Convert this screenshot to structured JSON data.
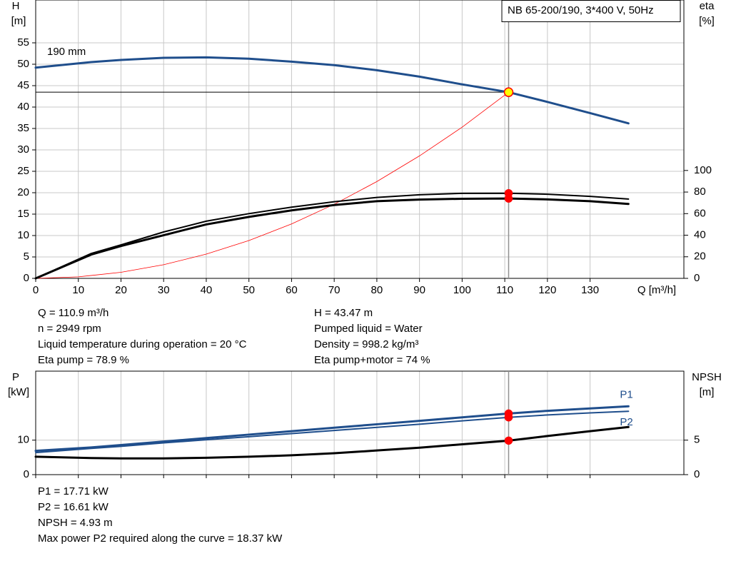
{
  "header": {
    "model": "NB 65-200/190, 3*400 V, 50Hz"
  },
  "chart_data": [
    {
      "type": "line",
      "y_label": "H",
      "y_unit": "[m]",
      "y2_label": "eta",
      "y2_unit": "[%]",
      "x_label": "Q [m³/h]",
      "xlim": [
        0,
        152
      ],
      "xticks": [
        0,
        10,
        20,
        30,
        40,
        50,
        60,
        70,
        80,
        90,
        100,
        110,
        120,
        130
      ],
      "show_xtick_labels": true,
      "ylim": [
        0,
        65
      ],
      "yticks": [
        0,
        5,
        10,
        15,
        20,
        25,
        30,
        35,
        40,
        45,
        50,
        55
      ],
      "y2lim": [
        0,
        258
      ],
      "y2ticks": [
        0,
        20,
        40,
        60,
        80,
        100
      ],
      "grid": true,
      "operating_x": 110.9,
      "series": [
        {
          "name": "190 mm",
          "color": "#1f4e8c",
          "width": 3,
          "marker": "#ffff00",
          "axis": "y",
          "x": [
            0,
            13,
            20,
            30,
            40,
            50,
            60,
            70,
            80,
            90,
            100,
            110.9,
            120,
            130,
            139
          ],
          "values": [
            49.2,
            50.5,
            51,
            51.5,
            51.6,
            51.3,
            50.6,
            49.8,
            48.6,
            47.1,
            45.3,
            43.47,
            41.2,
            38.6,
            36.2
          ]
        },
        {
          "color": "#ff0000",
          "width": 0.8,
          "axis": "y",
          "x": [
            0,
            10,
            20,
            30,
            40,
            50,
            60,
            70,
            80,
            90,
            100,
            110.9
          ],
          "values": [
            0,
            0.35,
            1.41,
            3.18,
            5.66,
            8.84,
            12.7,
            17.3,
            22.6,
            28.6,
            35.3,
            43.47
          ]
        },
        {
          "color": "#000000",
          "width": 2,
          "marker": "#ff0000",
          "axis": "y2",
          "x": [
            0,
            13,
            20,
            30,
            40,
            50,
            60,
            70,
            80,
            90,
            100,
            110.9,
            120,
            130,
            139
          ],
          "values": [
            0,
            23,
            31,
            43,
            53,
            60,
            66,
            71,
            75,
            77.5,
            78.8,
            78.9,
            78,
            76,
            73.5
          ]
        },
        {
          "color": "#000000",
          "width": 3,
          "marker": "#ff0000",
          "axis": "y2",
          "x": [
            0,
            13,
            20,
            30,
            40,
            50,
            60,
            70,
            80,
            90,
            100,
            110.9,
            120,
            130,
            139
          ],
          "values": [
            0,
            22,
            30,
            40,
            50,
            57,
            63,
            68,
            71.5,
            73,
            73.8,
            74,
            73.2,
            71.5,
            69
          ]
        }
      ]
    },
    {
      "type": "line",
      "y_label": "P",
      "y_unit": "[kW]",
      "y2_label": "NPSH",
      "y2_unit": "[m]",
      "xlim": [
        0,
        152
      ],
      "xticks": [
        0,
        10,
        20,
        30,
        40,
        50,
        60,
        70,
        80,
        90,
        100,
        110,
        120,
        130
      ],
      "show_xtick_labels": false,
      "ylim": [
        0,
        30
      ],
      "yticks": [
        0,
        10
      ],
      "y2lim": [
        0,
        15
      ],
      "y2ticks": [
        0,
        5
      ],
      "grid": true,
      "operating_x": 110.9,
      "series": [
        {
          "name": "P1",
          "color": "#1f4e8c",
          "width": 3,
          "marker": "#ff0000",
          "axis": "y",
          "x": [
            0,
            13,
            20,
            30,
            40,
            50,
            60,
            70,
            80,
            90,
            100,
            110.9,
            120,
            130,
            139
          ],
          "values": [
            6.9,
            7.9,
            8.6,
            9.6,
            10.6,
            11.6,
            12.6,
            13.6,
            14.6,
            15.6,
            16.6,
            17.71,
            18.5,
            19.2,
            19.8
          ]
        },
        {
          "name": "P2",
          "color": "#1f4e8c",
          "width": 2,
          "marker": "#ff0000",
          "axis": "y",
          "x": [
            0,
            13,
            20,
            30,
            40,
            50,
            60,
            70,
            80,
            90,
            100,
            110.9,
            120,
            130,
            139
          ],
          "values": [
            6.4,
            7.6,
            8.2,
            9.2,
            10.1,
            11,
            11.9,
            12.8,
            13.7,
            14.6,
            15.6,
            16.61,
            17.3,
            17.9,
            18.37
          ]
        },
        {
          "color": "#000000",
          "width": 3,
          "marker": "#ff0000",
          "axis": "y2",
          "x": [
            0,
            13,
            20,
            30,
            40,
            50,
            60,
            70,
            80,
            90,
            100,
            110.9,
            120,
            130,
            139
          ],
          "values": [
            2.6,
            2.4,
            2.35,
            2.35,
            2.45,
            2.6,
            2.8,
            3.1,
            3.5,
            3.9,
            4.4,
            4.93,
            5.6,
            6.3,
            6.9
          ]
        }
      ]
    }
  ],
  "info": {
    "left": [
      "Q = 110.9 m³/h",
      "n = 2949 rpm",
      "Liquid temperature during operation = 20 °C",
      "Eta pump = 78.9 %"
    ],
    "right": [
      "H = 43.47 m",
      "Pumped liquid = Water",
      "Density = 998.2 kg/m³",
      "Eta pump+motor = 74 %"
    ],
    "bottom": [
      "P1 = 17.71 kW",
      "P2 = 16.61 kW",
      "NPSH = 4.93 m",
      "Max power P2 required along the curve = 18.37 kW"
    ]
  }
}
